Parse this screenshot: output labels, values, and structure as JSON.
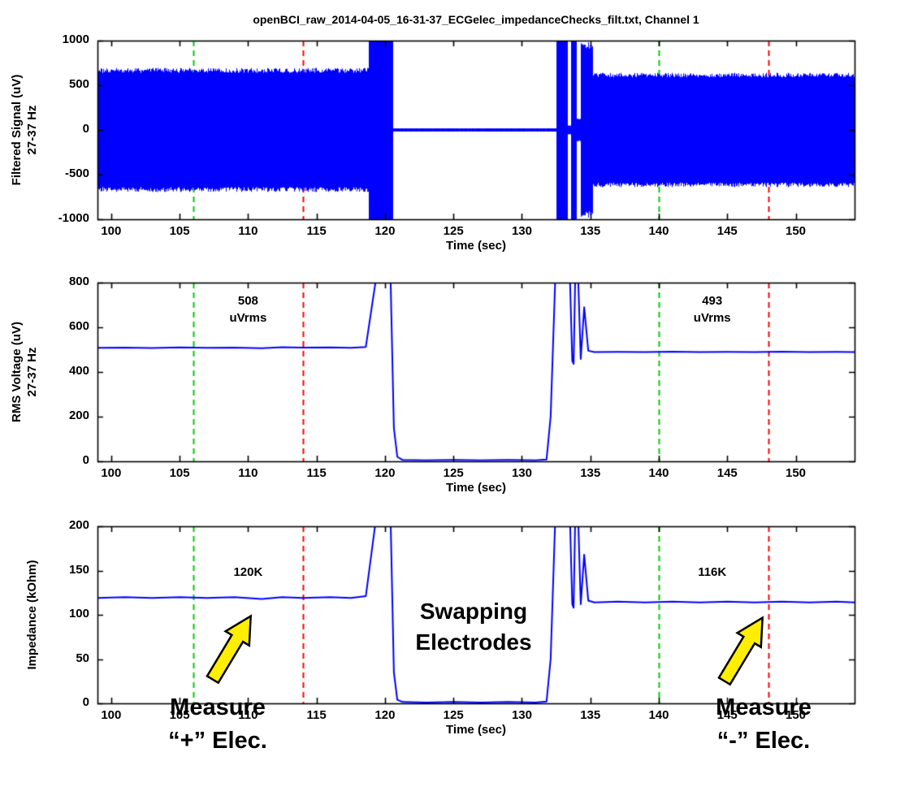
{
  "title": "openBCI_raw_2014-04-05_16-31-37_ECGelec_impedanceChecks_filt.txt, Channel 1",
  "colors": {
    "trace": "#0000FF",
    "marker_green": "#00CC00",
    "marker_red": "#FF0000",
    "arrow_fill": "#FFEE00",
    "arrow_stroke": "#000000",
    "axis": "#000000"
  },
  "texts": {
    "swapping": [
      "Swapping",
      "Electrodes"
    ],
    "measure_plus": [
      "Measure",
      "“+” Elec."
    ],
    "measure_minus": [
      "Measure",
      "“-” Elec."
    ]
  },
  "chart_data": [
    {
      "type": "line",
      "name": "filtered-signal",
      "xlabel": "Time (sec)",
      "ylabel_lines": [
        "Filtered Signal (uV)",
        "27-37 Hz"
      ],
      "xlim": [
        99,
        154.3
      ],
      "ylim": [
        -1000,
        1000
      ],
      "xticks": [
        100,
        105,
        110,
        115,
        120,
        125,
        130,
        135,
        140,
        145,
        150
      ],
      "yticks": [
        -1000,
        -500,
        0,
        500,
        1000
      ],
      "vlines": [
        {
          "x": 106,
          "color": "green"
        },
        {
          "x": 114,
          "color": "red"
        },
        {
          "x": 140,
          "color": "green"
        },
        {
          "x": 148,
          "color": "red"
        }
      ],
      "band_segments": [
        {
          "t0": 99,
          "t1": 118.8,
          "amp": 695
        },
        {
          "t0": 118.8,
          "t1": 120.55,
          "amp": 1080
        },
        {
          "t0": 120.55,
          "t1": 132.55,
          "amp": 18
        },
        {
          "t0": 132.55,
          "t1": 133.3,
          "amp": 1080
        },
        {
          "t0": 133.3,
          "t1": 133.6,
          "amp": 50
        },
        {
          "t0": 133.6,
          "t1": 133.95,
          "amp": 1080
        },
        {
          "t0": 133.95,
          "t1": 134.3,
          "amp": 130
        },
        {
          "t0": 134.3,
          "t1": 135.15,
          "amp": 990
        },
        {
          "t0": 135.15,
          "t1": 154.3,
          "amp": 640
        }
      ]
    },
    {
      "type": "line",
      "name": "rms-voltage",
      "xlabel": "Time (sec)",
      "ylabel_lines": [
        "RMS Voltage (uV)",
        "27-37 Hz"
      ],
      "xlim": [
        99,
        154.3
      ],
      "ylim": [
        0,
        800
      ],
      "xticks": [
        100,
        105,
        110,
        115,
        120,
        125,
        130,
        135,
        140,
        145,
        150
      ],
      "yticks": [
        0,
        200,
        400,
        600,
        800
      ],
      "vlines": [
        {
          "x": 106,
          "color": "green"
        },
        {
          "x": 114,
          "color": "red"
        },
        {
          "x": 140,
          "color": "green"
        },
        {
          "x": 148,
          "color": "red"
        }
      ],
      "line_points": [
        [
          99,
          508
        ],
        [
          101,
          509
        ],
        [
          103,
          507
        ],
        [
          105,
          510
        ],
        [
          107,
          508
        ],
        [
          109,
          509
        ],
        [
          111,
          506
        ],
        [
          112.5,
          511
        ],
        [
          114,
          509
        ],
        [
          116,
          510
        ],
        [
          117.5,
          508
        ],
        [
          118.6,
          512
        ],
        [
          119.4,
          840
        ],
        [
          120.4,
          840
        ],
        [
          120.65,
          150
        ],
        [
          120.9,
          20
        ],
        [
          121.3,
          6
        ],
        [
          123,
          5
        ],
        [
          125,
          6
        ],
        [
          127,
          5
        ],
        [
          129,
          6
        ],
        [
          131,
          5
        ],
        [
          131.8,
          8
        ],
        [
          132.1,
          200
        ],
        [
          132.45,
          840
        ],
        [
          133.5,
          840
        ],
        [
          133.68,
          450
        ],
        [
          133.78,
          436
        ],
        [
          133.9,
          840
        ],
        [
          134.1,
          840
        ],
        [
          134.3,
          458
        ],
        [
          134.55,
          690
        ],
        [
          134.85,
          495
        ],
        [
          135.3,
          489
        ],
        [
          137,
          490
        ],
        [
          139,
          489
        ],
        [
          141,
          491
        ],
        [
          143,
          489
        ],
        [
          145,
          490
        ],
        [
          147,
          489
        ],
        [
          149,
          491
        ],
        [
          151,
          489
        ],
        [
          153,
          490
        ],
        [
          154.3,
          489
        ]
      ],
      "annotations": [
        {
          "x": 110,
          "y": 718,
          "lines": [
            "508",
            "uVrms"
          ]
        },
        {
          "x": 143.9,
          "y": 718,
          "lines": [
            "493",
            "uVrms"
          ]
        }
      ]
    },
    {
      "type": "line",
      "name": "impedance",
      "xlabel": "Time (sec)",
      "ylabel_lines": [
        "Impedance (kOhm)"
      ],
      "xlim": [
        99,
        154.3
      ],
      "ylim": [
        0,
        200
      ],
      "xticks": [
        100,
        105,
        110,
        115,
        120,
        125,
        130,
        135,
        140,
        145,
        150
      ],
      "yticks": [
        0,
        50,
        100,
        150,
        200
      ],
      "vlines": [
        {
          "x": 106,
          "color": "green"
        },
        {
          "x": 114,
          "color": "red"
        },
        {
          "x": 140,
          "color": "green"
        },
        {
          "x": 148,
          "color": "red"
        }
      ],
      "line_points": [
        [
          99,
          119
        ],
        [
          101,
          120
        ],
        [
          103,
          119
        ],
        [
          105,
          120
        ],
        [
          107,
          119
        ],
        [
          109,
          120
        ],
        [
          111,
          118
        ],
        [
          112.5,
          120
        ],
        [
          114,
          119
        ],
        [
          116,
          120
        ],
        [
          117.5,
          119
        ],
        [
          118.6,
          121
        ],
        [
          119.4,
          215
        ],
        [
          120.4,
          215
        ],
        [
          120.65,
          35
        ],
        [
          120.9,
          4
        ],
        [
          121.3,
          1.5
        ],
        [
          123,
          1
        ],
        [
          125,
          1.5
        ],
        [
          127,
          1
        ],
        [
          129,
          1.5
        ],
        [
          131,
          1
        ],
        [
          131.8,
          2
        ],
        [
          132.1,
          50
        ],
        [
          132.45,
          215
        ],
        [
          133.5,
          215
        ],
        [
          133.68,
          112
        ],
        [
          133.78,
          108
        ],
        [
          133.9,
          215
        ],
        [
          134.1,
          215
        ],
        [
          134.3,
          112
        ],
        [
          134.55,
          168
        ],
        [
          134.85,
          116
        ],
        [
          135.3,
          114
        ],
        [
          137,
          115
        ],
        [
          139,
          114
        ],
        [
          141,
          115
        ],
        [
          143,
          114
        ],
        [
          145,
          115
        ],
        [
          147,
          114
        ],
        [
          149,
          115
        ],
        [
          151,
          114
        ],
        [
          153,
          115
        ],
        [
          154.3,
          114
        ]
      ],
      "annotations": [
        {
          "x": 110,
          "y": 148,
          "lines": [
            "120K"
          ]
        },
        {
          "x": 143.9,
          "y": 148,
          "lines": [
            "116K"
          ]
        }
      ]
    }
  ]
}
